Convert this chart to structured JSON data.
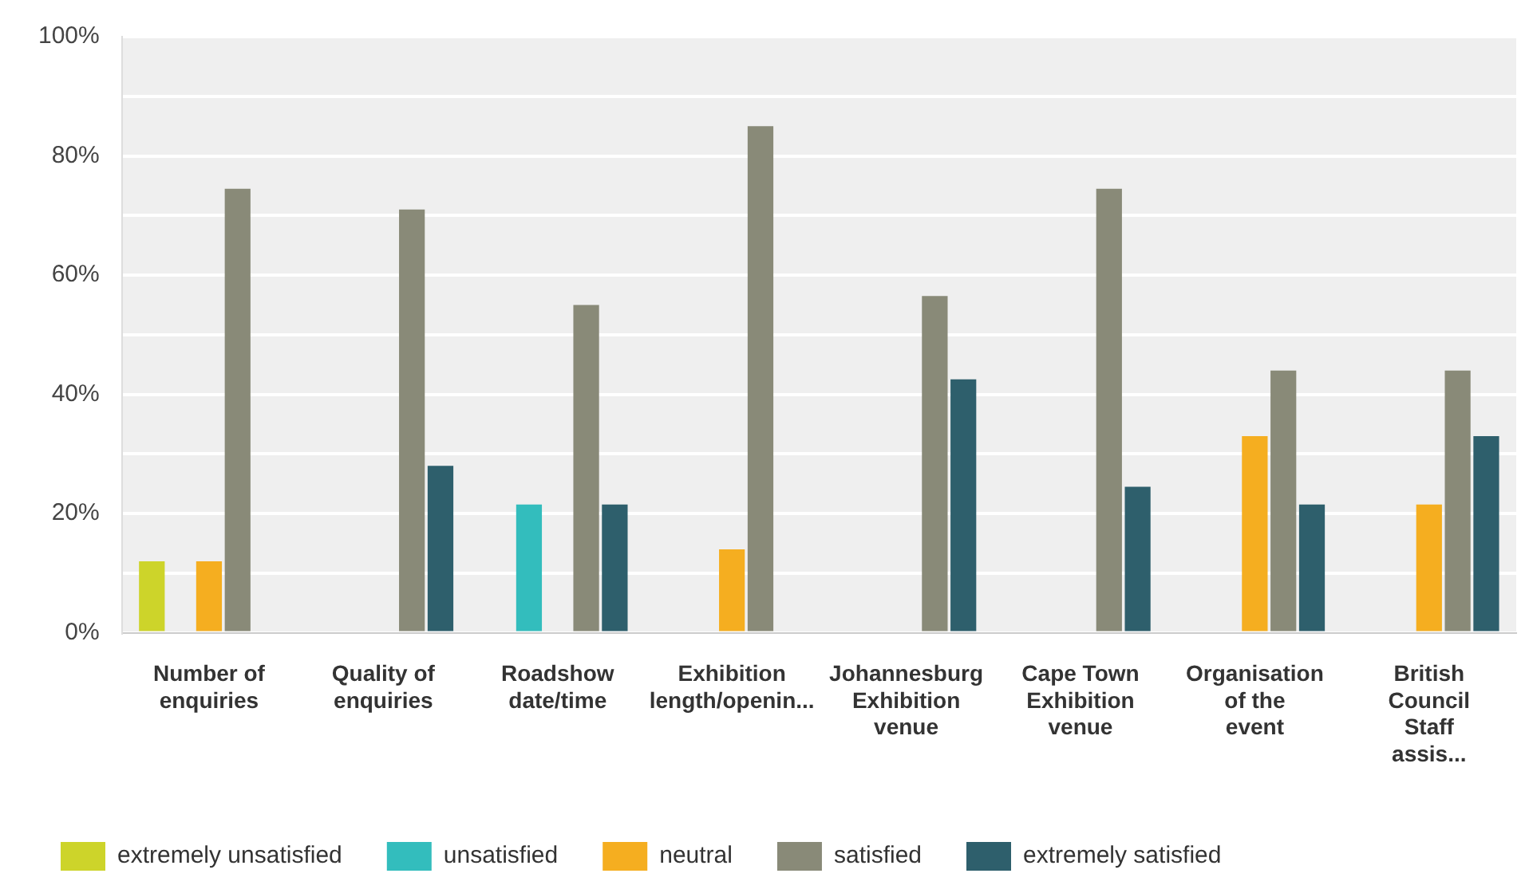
{
  "chart_data": {
    "type": "bar",
    "categories": [
      "Number of enquiries",
      "Quality of enquiries",
      "Roadshow date/time",
      "Exhibition length/openin...",
      "Johannesburg Exhibition venue",
      "Cape Town Exhibition venue",
      "Organisation of the event",
      "British Council Staff assis..."
    ],
    "series": [
      {
        "name": "extremely unsatisfied",
        "color": "#cdd42a",
        "values": [
          12,
          null,
          null,
          null,
          null,
          null,
          null,
          null
        ]
      },
      {
        "name": "unsatisfied",
        "color": "#33bdbd",
        "values": [
          null,
          null,
          21.5,
          null,
          null,
          null,
          null,
          null
        ]
      },
      {
        "name": "neutral",
        "color": "#f5ae20",
        "values": [
          12,
          null,
          null,
          14,
          null,
          null,
          33,
          21.5
        ]
      },
      {
        "name": "satisfied",
        "color": "#898a78",
        "values": [
          74.5,
          71,
          55,
          85,
          56.5,
          74.5,
          44,
          44
        ]
      },
      {
        "name": "extremely satisfied",
        "color": "#2e5f6c",
        "values": [
          null,
          28,
          21.5,
          null,
          42.5,
          24.5,
          21.5,
          33
        ]
      }
    ],
    "ylim": [
      0,
      100
    ],
    "yticks": [
      {
        "value": 0,
        "label": "0%"
      },
      {
        "value": 10,
        "label": null
      },
      {
        "value": 20,
        "label": "20%"
      },
      {
        "value": 30,
        "label": null
      },
      {
        "value": 40,
        "label": "40%"
      },
      {
        "value": 50,
        "label": null
      },
      {
        "value": 60,
        "label": "60%"
      },
      {
        "value": 70,
        "label": null
      },
      {
        "value": 80,
        "label": "80%"
      },
      {
        "value": 90,
        "label": null
      },
      {
        "value": 100,
        "label": "100%"
      }
    ],
    "grid": "y",
    "legend": "bottom left"
  }
}
